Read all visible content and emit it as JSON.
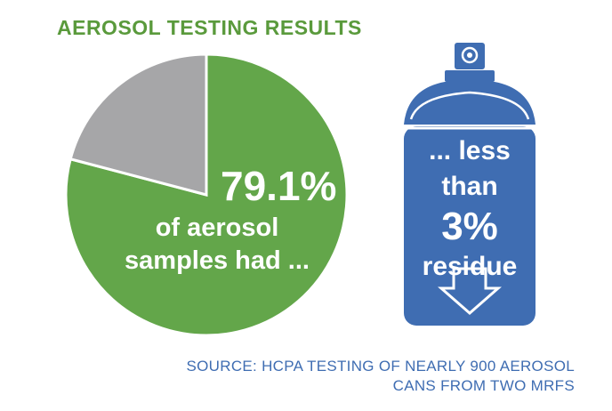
{
  "title": "AEROSOL TESTING RESULTS",
  "colors": {
    "title": "#5a9a3c",
    "pie_main": "#63a64a",
    "pie_other": "#a6a6a8",
    "can": "#3f6db2",
    "source": "#3f6db2"
  },
  "chart_data": {
    "type": "pie",
    "slices": [
      {
        "label": "79.1%",
        "value": 79.1
      },
      {
        "label": "",
        "value": 20.9
      }
    ],
    "caption_lines": [
      "of aerosol",
      "samples had ..."
    ]
  },
  "can": {
    "icon": "spray-can-icon",
    "lines": [
      "... less",
      "than",
      "3%",
      "residue"
    ],
    "arrow_icon": "down-arrow-icon"
  },
  "source_lines": [
    "SOURCE: HCPA TESTING OF NEARLY 900 AEROSOL",
    "CANS FROM TWO MRFS"
  ]
}
